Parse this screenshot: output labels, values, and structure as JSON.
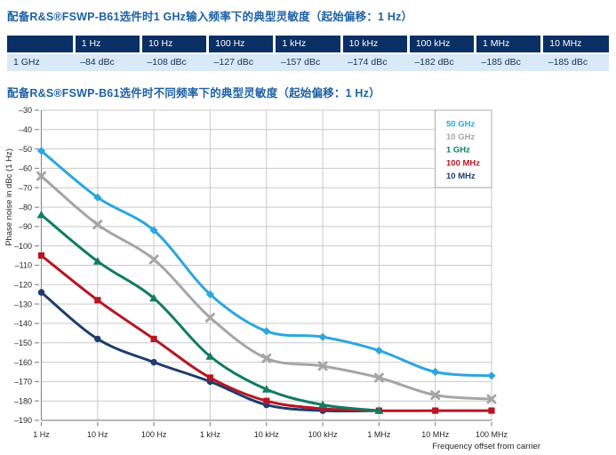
{
  "section1": {
    "title": "配备R&S®FSWP-B61选件时1 GHz输入频率下的典型灵敏度（起始偏移：1 Hz）"
  },
  "section2": {
    "title": "配备R&S®FSWP-B61选件时不同频率下的典型灵敏度（起始偏移：1 Hz）"
  },
  "table": {
    "header_bg": "#0A2F64",
    "header_text_color": "#FFFFFF",
    "row_bg": "#D9E9F6",
    "row_text_color": "#12315B",
    "headers": [
      "",
      "1 Hz",
      "10 Hz",
      "100 Hz",
      "1 kHz",
      "10 kHz",
      "100 kHz",
      "1 MHz",
      "10 MHz"
    ],
    "rows": [
      {
        "label": "1 GHz",
        "values": [
          "–84 dBc",
          "–108 dBc",
          "–127 dBc",
          "–157 dBc",
          "–174 dBc",
          "–182 dBc",
          "–185 dBc",
          "–185 dBc"
        ]
      }
    ]
  },
  "chart_data": {
    "type": "line",
    "title": "",
    "xlabel": "Frequency offset from carrier",
    "ylabel": "Phase noise in dBc (1 Hz)",
    "x_scale": "log",
    "categories": [
      "1 Hz",
      "10 Hz",
      "100 Hz",
      "1 kHz",
      "10 kHz",
      "100 kHz",
      "1 MHz",
      "10 MHz",
      "100 MHz"
    ],
    "ylim": [
      -190,
      -30
    ],
    "y_tick_step": 10,
    "y_tick_labels": [
      "–30",
      "–40",
      "–50",
      "–60",
      "–70",
      "–80",
      "–90",
      "–100",
      "–110",
      "–120",
      "–130",
      "–140",
      "–150",
      "–160",
      "–170",
      "–180",
      "–190"
    ],
    "grid": true,
    "legend_position": "top-right",
    "axis_text_color": "#262626",
    "grid_color": "#C9C9C9",
    "axis_color": "#8C8C8C",
    "series": [
      {
        "name": "50 GHz",
        "color": "#2BA6DF",
        "marker": "diamond",
        "values": [
          -51,
          -75,
          -92,
          -125,
          -144,
          -147,
          -154,
          -165,
          -167
        ]
      },
      {
        "name": "10 GHz",
        "color": "#A5A5A5",
        "marker": "x",
        "values": [
          -64,
          -89,
          -107,
          -137,
          -158,
          -162,
          -168,
          -177,
          -179
        ]
      },
      {
        "name": "1 GHz",
        "color": "#127B63",
        "marker": "triangle",
        "values": [
          -84,
          -108,
          -127,
          -157,
          -174,
          -182,
          -185,
          null,
          null
        ]
      },
      {
        "name": "100 MHz",
        "color": "#B81623",
        "marker": "square",
        "values": [
          -105,
          -128,
          -148,
          -168,
          -180,
          -184,
          -185,
          -185,
          -185
        ]
      },
      {
        "name": "10 MHz",
        "color": "#1E3C6E",
        "marker": "circle",
        "values": [
          -124,
          -148,
          -160,
          -170,
          -182,
          -185,
          -185,
          null,
          null
        ]
      }
    ]
  }
}
